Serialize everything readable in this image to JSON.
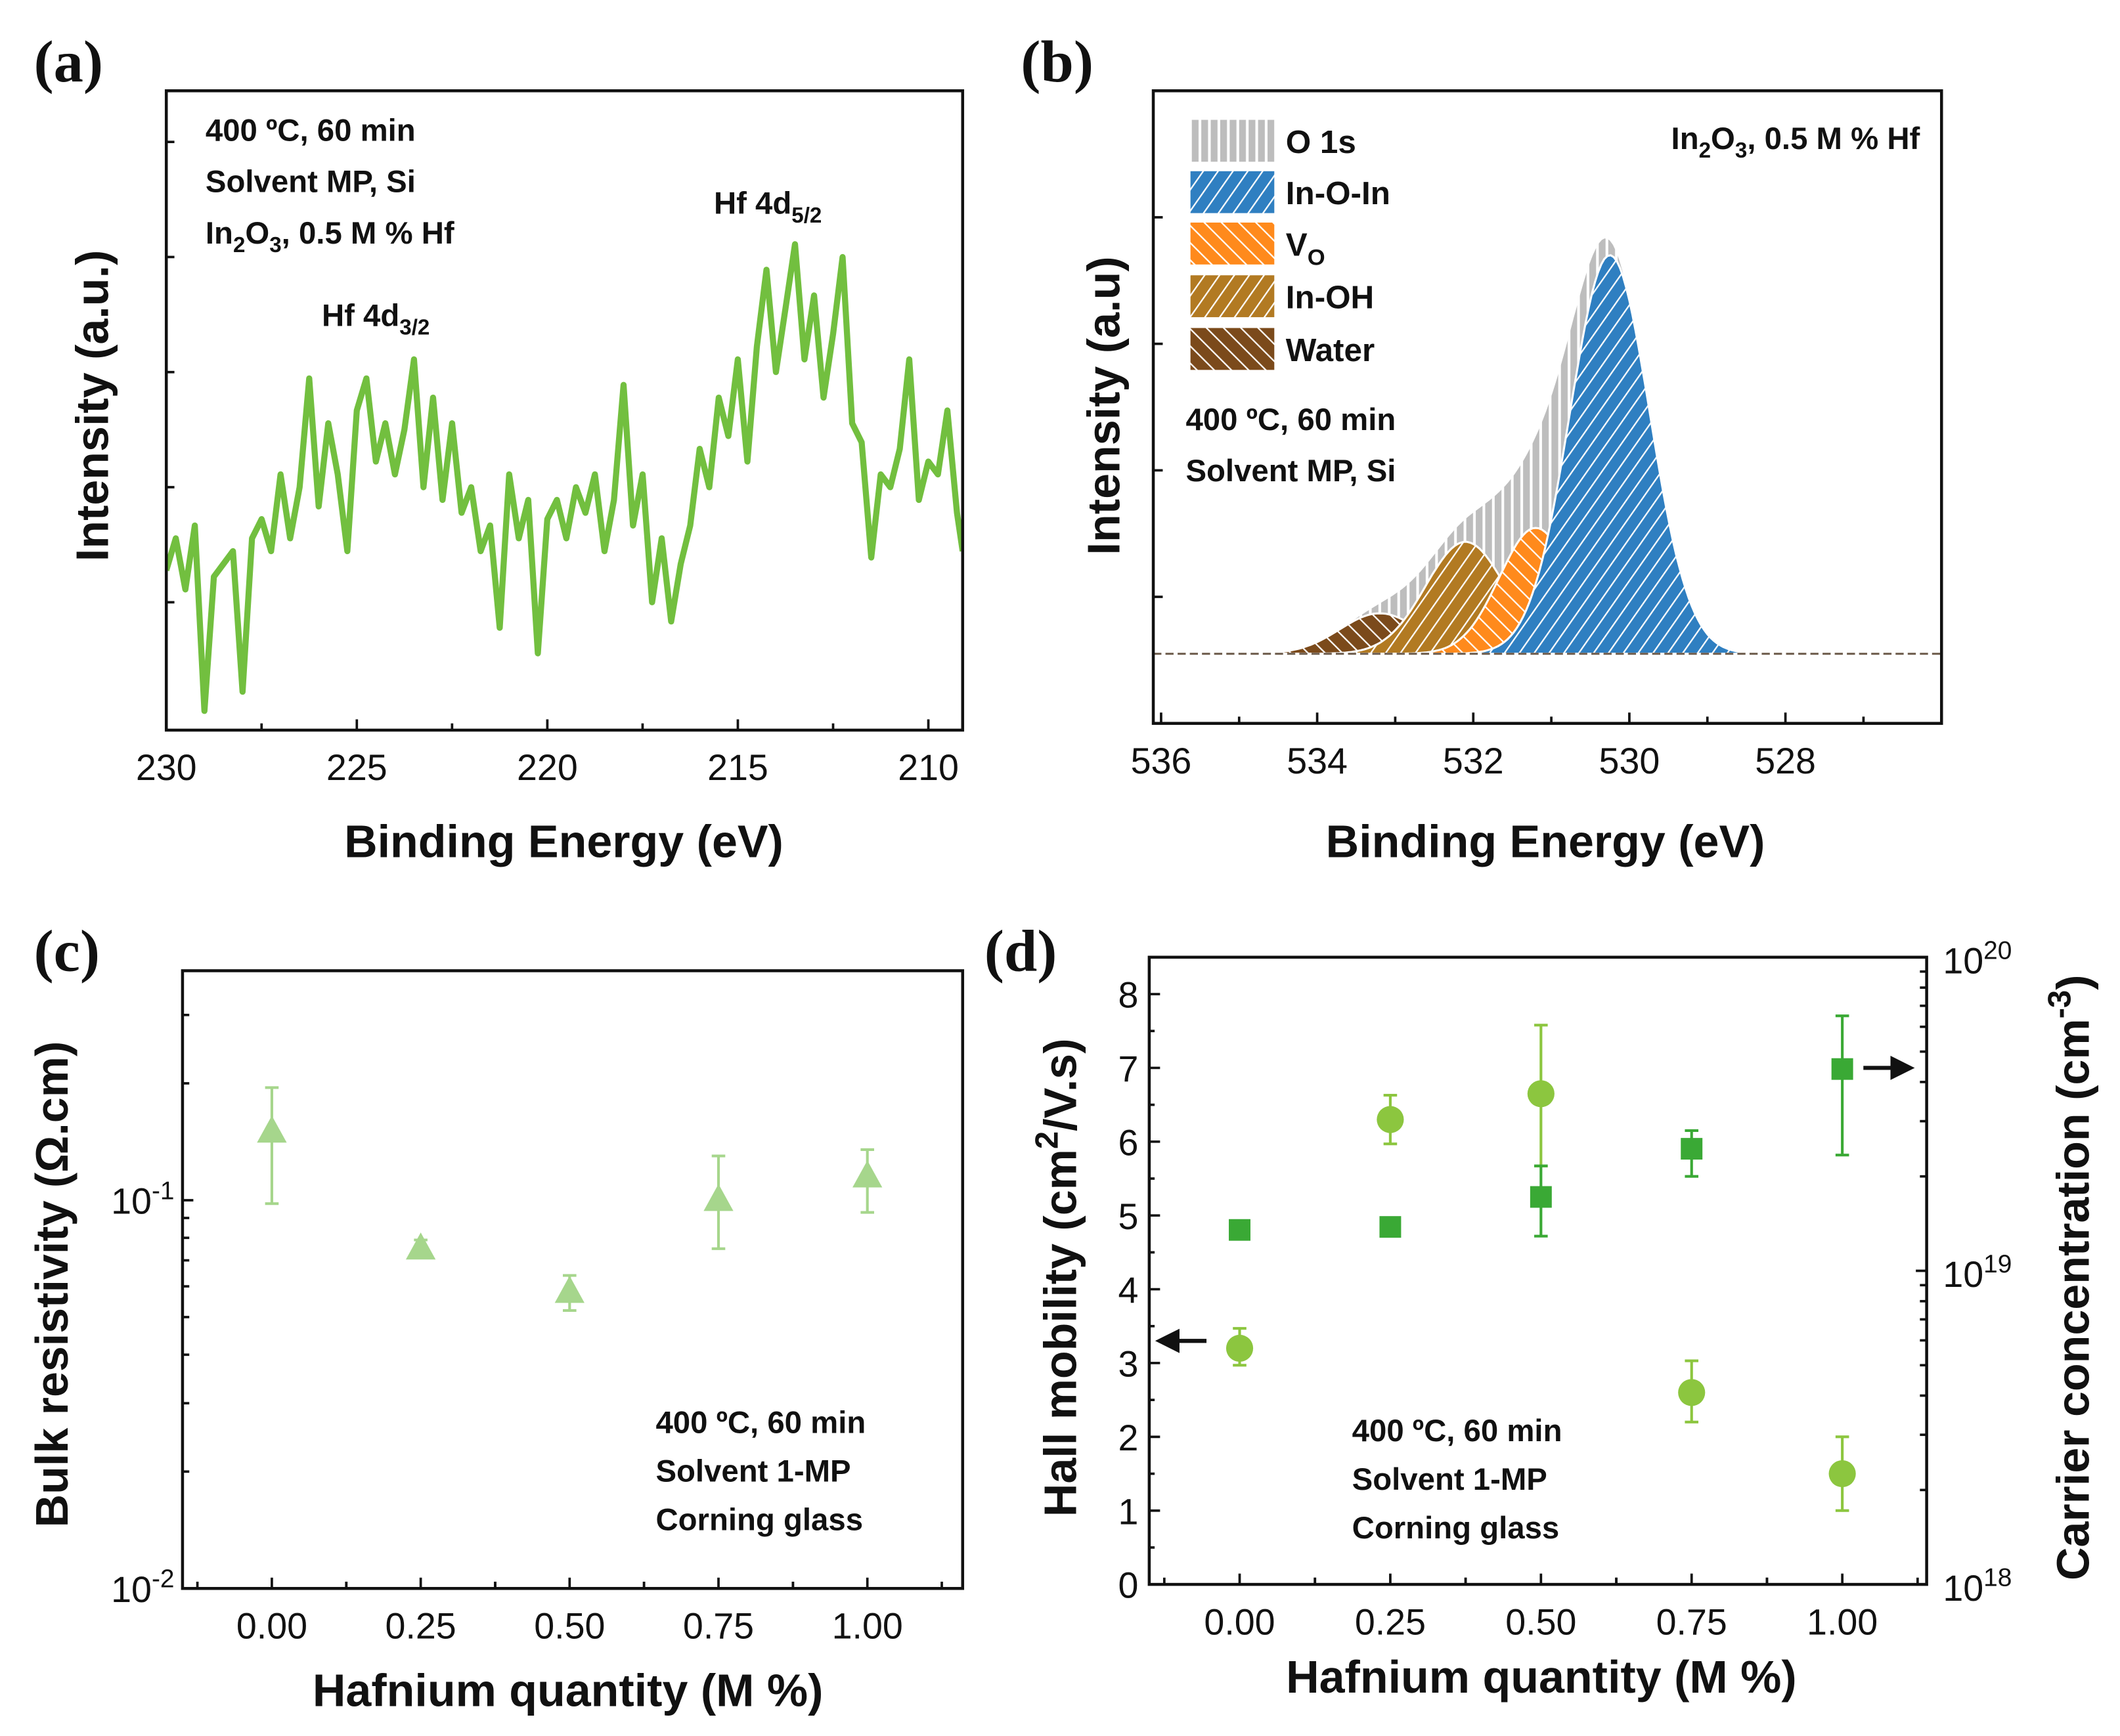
{
  "colors": {
    "a_line": "#72bf3f",
    "a_sample_text": "#7cc544",
    "c_marker": "#a6d68c",
    "d_mobility": "#8cc63f",
    "d_carrier": "#3aa935",
    "o1s": "#bdbdbd",
    "in_o_in": "#2f7fc1",
    "vo": "#ff8a1c",
    "in_oh": "#b27a22",
    "water": "#7b4a1b"
  },
  "chart_data": [
    {
      "panel": "(a)",
      "type": "line",
      "xlabel": "Binding Energy (eV)",
      "ylabel": "Intensity (a.u.)",
      "xlim": [
        230,
        209.1
      ],
      "ylim": [
        0,
        100
      ],
      "x_reversed": true,
      "y_tick_labels_shown": false,
      "x_ticks": [
        "230",
        "225",
        "220",
        "215",
        "210"
      ],
      "annotations": {
        "cond1": "400 ºC, 60 min",
        "cond2": "Solvent MP, Si",
        "sample": [
          [
            "In",
            ""
          ],
          [
            "2",
            "sub"
          ],
          [
            "O",
            ""
          ],
          [
            "3",
            "sub"
          ],
          [
            ", 0.5 M % Hf",
            ""
          ]
        ],
        "peak1": [
          [
            "Hf 4d",
            ""
          ],
          [
            "3/2",
            "sub"
          ]
        ],
        "peak2": [
          [
            "Hf 4d",
            ""
          ],
          [
            "5/2",
            "sub"
          ]
        ]
      },
      "series": [
        {
          "x": [
            230,
            229.75,
            229.5,
            229.25,
            229,
            228.75,
            228.5,
            228.25,
            228,
            227.75,
            227.5,
            227.25,
            227,
            226.75,
            226.5,
            226.25,
            226,
            225.75,
            225.5,
            225.25,
            225,
            224.75,
            224.5,
            224.25,
            224,
            223.75,
            223.5,
            223.25,
            223,
            222.75,
            222.5,
            222.25,
            222,
            221.75,
            221.5,
            221.25,
            221,
            220.75,
            220.5,
            220.25,
            220,
            219.75,
            219.5,
            219.25,
            219,
            218.75,
            218.5,
            218.25,
            218,
            217.75,
            217.5,
            217.25,
            217,
            216.75,
            216.5,
            216.25,
            216,
            215.75,
            215.5,
            215.25,
            215,
            214.75,
            214.5,
            214.25,
            214,
            213.75,
            213.5,
            213.25,
            213,
            212.75,
            212.5,
            212.25,
            212,
            211.75,
            211.5,
            211.25,
            211,
            210.75,
            210.5,
            210.25,
            210,
            209.75,
            209.5,
            209.25,
            209.1
          ],
          "y": [
            25,
            30,
            22,
            32,
            3,
            24,
            26,
            28,
            6,
            30,
            33,
            28,
            40,
            30,
            38,
            55,
            35,
            48,
            40,
            28,
            50,
            55,
            42,
            48,
            40,
            47,
            58,
            38,
            52,
            36,
            48,
            34,
            38,
            28,
            32,
            16,
            40,
            30,
            36,
            12,
            33,
            36,
            30,
            38,
            34,
            40,
            28,
            36,
            54,
            32,
            40,
            20,
            30,
            17,
            26,
            32,
            44,
            38,
            52,
            46,
            58,
            42,
            60,
            72,
            56,
            66,
            76,
            58,
            68,
            52,
            62,
            74,
            48,
            45,
            27,
            40,
            38,
            44,
            58,
            36,
            42,
            40,
            50,
            34,
            28
          ]
        }
      ]
    },
    {
      "panel": "(b)",
      "type": "area",
      "xlabel": "Binding Energy (eV)",
      "ylabel": "Intensity (a.u)",
      "xlim": [
        536.1,
        526.0
      ],
      "ylim": [
        0,
        100
      ],
      "x_reversed": true,
      "y_tick_labels_shown": false,
      "x_ticks": [
        "536",
        "534",
        "532",
        "530",
        "528"
      ],
      "baseline": 11,
      "annotations": {
        "sample": [
          [
            "In",
            ""
          ],
          [
            "2",
            "sub"
          ],
          [
            "O",
            ""
          ],
          [
            "3",
            "sub"
          ],
          [
            ", 0.5 M % Hf",
            ""
          ]
        ],
        "cond1": "400 ºC, 60 min",
        "cond2": "Solvent MP, Si"
      },
      "legend_position": "top-left",
      "series": [
        {
          "name": [
            [
              "O 1s",
              ""
            ]
          ],
          "kind": "envelope",
          "color_key": "o1s",
          "hatch": "vertical"
        },
        {
          "name": [
            [
              "Water",
              ""
            ]
          ],
          "center": 533.2,
          "height": 6.4,
          "fwhm": 1.2,
          "color_key": "water",
          "hatch": "backslash"
        },
        {
          "name": [
            [
              "In-OH",
              ""
            ]
          ],
          "center": 532.1,
          "height": 17.7,
          "fwhm": 1.2,
          "color_key": "in_oh",
          "hatch": "slash"
        },
        {
          "name": [
            [
              "V",
              ""
            ],
            [
              "O",
              "sub"
            ]
          ],
          "center": 531.2,
          "height": 19.9,
          "fwhm": 1.1,
          "color_key": "vo",
          "hatch": "backslash"
        },
        {
          "name": [
            [
              "In-O-In",
              ""
            ]
          ],
          "center": 530.25,
          "height": 63,
          "fwhm": 1.2,
          "color_key": "in_o_in",
          "hatch": "slash"
        }
      ],
      "legend_order": [
        0,
        4,
        3,
        2,
        1
      ]
    },
    {
      "panel": "(c)",
      "type": "scatter",
      "xlabel": "Hafnium quantity (M %)",
      "ylabel": "Bulk resistivity (Ω.cm)",
      "xlim": [
        -0.15,
        1.16
      ],
      "ylim": [
        0.01,
        0.39
      ],
      "y_scale": "log",
      "x_ticks": [
        "0.00",
        "0.25",
        "0.50",
        "0.75",
        "1.00"
      ],
      "y_ticks": [
        {
          "value": 0.1,
          "label": [
            [
              "10",
              ""
            ],
            [
              "-1",
              "sup"
            ]
          ]
        },
        {
          "value": 0.01,
          "label": [
            [
              "10",
              ""
            ],
            [
              "-2",
              "sup"
            ]
          ]
        }
      ],
      "annotations": {
        "cond1": "400 ºC, 60 min",
        "cond2": "Solvent 1-MP",
        "cond3": "Corning glass"
      },
      "series": [
        {
          "marker": "triangle",
          "x": [
            0,
            0.25,
            0.5,
            0.75,
            1.0
          ],
          "y": [
            0.15,
            0.075,
            0.058,
            0.1,
            0.115
          ],
          "err": [
            [
              0.098,
              0.195
            ],
            [
              0.071,
              0.079
            ],
            [
              0.052,
              0.064
            ],
            [
              0.075,
              0.13
            ],
            [
              0.093,
              0.135
            ]
          ]
        }
      ]
    },
    {
      "panel": "(d)",
      "type": "scatter",
      "xlabel": "Hafnium quantity (M %)",
      "ylabel": [
        [
          "Hall mobility (cm",
          ""
        ],
        [
          "2",
          "sup"
        ],
        [
          "/V.s)",
          ""
        ]
      ],
      "ylabel_right": [
        [
          "Carrier concentration (cm",
          ""
        ],
        [
          "-3",
          "sup"
        ],
        [
          ")",
          ""
        ]
      ],
      "xlim": [
        -0.15,
        1.14
      ],
      "ylim": [
        0,
        8.5
      ],
      "ylim_right": [
        1e+18,
        1e+20
      ],
      "y_right_scale": "log",
      "x_ticks": [
        "0.00",
        "0.25",
        "0.50",
        "0.75",
        "1.00"
      ],
      "y_ticks": [
        "0",
        "1",
        "2",
        "3",
        "4",
        "5",
        "6",
        "7",
        "8"
      ],
      "y_right_ticks": [
        {
          "value": 1e+18,
          "label": [
            [
              "10",
              ""
            ],
            [
              "18",
              "sup"
            ]
          ]
        },
        {
          "value": 1e+19,
          "label": [
            [
              "10",
              ""
            ],
            [
              "19",
              "sup"
            ]
          ]
        },
        {
          "value": 1e+20,
          "label": [
            [
              "10",
              ""
            ],
            [
              "20",
              "sup"
            ]
          ]
        }
      ],
      "annotations": {
        "cond1": "400 ºC, 60 min",
        "cond2": "Solvent 1-MP",
        "cond3": "Corning glass"
      },
      "series": [
        {
          "axis": "left",
          "marker": "circle",
          "x": [
            0,
            0.25,
            0.5,
            0.75,
            1.0
          ],
          "y": [
            3.2,
            6.3,
            6.65,
            2.6,
            1.5
          ],
          "err": [
            [
              2.97,
              3.47
            ],
            [
              5.97,
              6.63
            ],
            [
              5.67,
              7.58
            ],
            [
              2.2,
              3.03
            ],
            [
              1.0,
              2.0
            ]
          ]
        },
        {
          "axis": "right",
          "marker": "square",
          "x": [
            0,
            0.25,
            0.5,
            0.75,
            1.0
          ],
          "y": [
            1.35e+19,
            1.38e+19,
            1.72e+19,
            2.45e+19,
            4.4e+19
          ],
          "err": [
            [
              1.28e+19,
              1.42e+19
            ],
            [
              1.31e+19,
              1.46e+19
            ],
            [
              1.29e+19,
              2.16e+19
            ],
            [
              2e+19,
              2.8e+19
            ],
            [
              2.34e+19,
              6.5e+19
            ]
          ]
        }
      ]
    }
  ]
}
